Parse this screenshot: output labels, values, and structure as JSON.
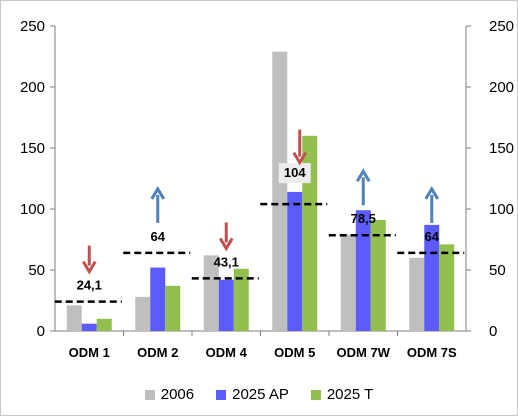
{
  "chart_data": {
    "type": "bar",
    "categories": [
      "ODM 1",
      "ODM 2",
      "ODM 4",
      "ODM 5",
      "ODM 7W",
      "ODM 7S"
    ],
    "series": [
      {
        "name": "2006",
        "color": "#bfbfbf",
        "values": [
          21,
          28,
          62,
          229,
          79,
          60
        ]
      },
      {
        "name": "2025 AP",
        "color": "#5b5bff",
        "values": [
          6,
          52,
          42,
          114,
          99,
          87
        ]
      },
      {
        "name": "2025 T",
        "color": "#93bf4f",
        "values": [
          10,
          37,
          51,
          160,
          91,
          71
        ]
      }
    ],
    "targets": [
      {
        "value": 24.1,
        "label": "24,1",
        "arrow": "down"
      },
      {
        "value": 64,
        "label": "64",
        "arrow": "up"
      },
      {
        "value": 43.1,
        "label": "43,1",
        "arrow": "down"
      },
      {
        "value": 104,
        "label": "104",
        "arrow": "down"
      },
      {
        "value": 78.5,
        "label": "78,5",
        "arrow": "up"
      },
      {
        "value": 64,
        "label": "64",
        "arrow": "up"
      }
    ],
    "ylim": [
      0,
      250
    ],
    "yticks": [
      0,
      50,
      100,
      150,
      200,
      250
    ],
    "y2ticks": [
      0,
      50,
      100,
      150,
      200,
      250
    ],
    "legend_position": "bottom",
    "grid": false,
    "arrow_colors": {
      "up": "#4f81bd",
      "down": "#c0504d"
    }
  }
}
